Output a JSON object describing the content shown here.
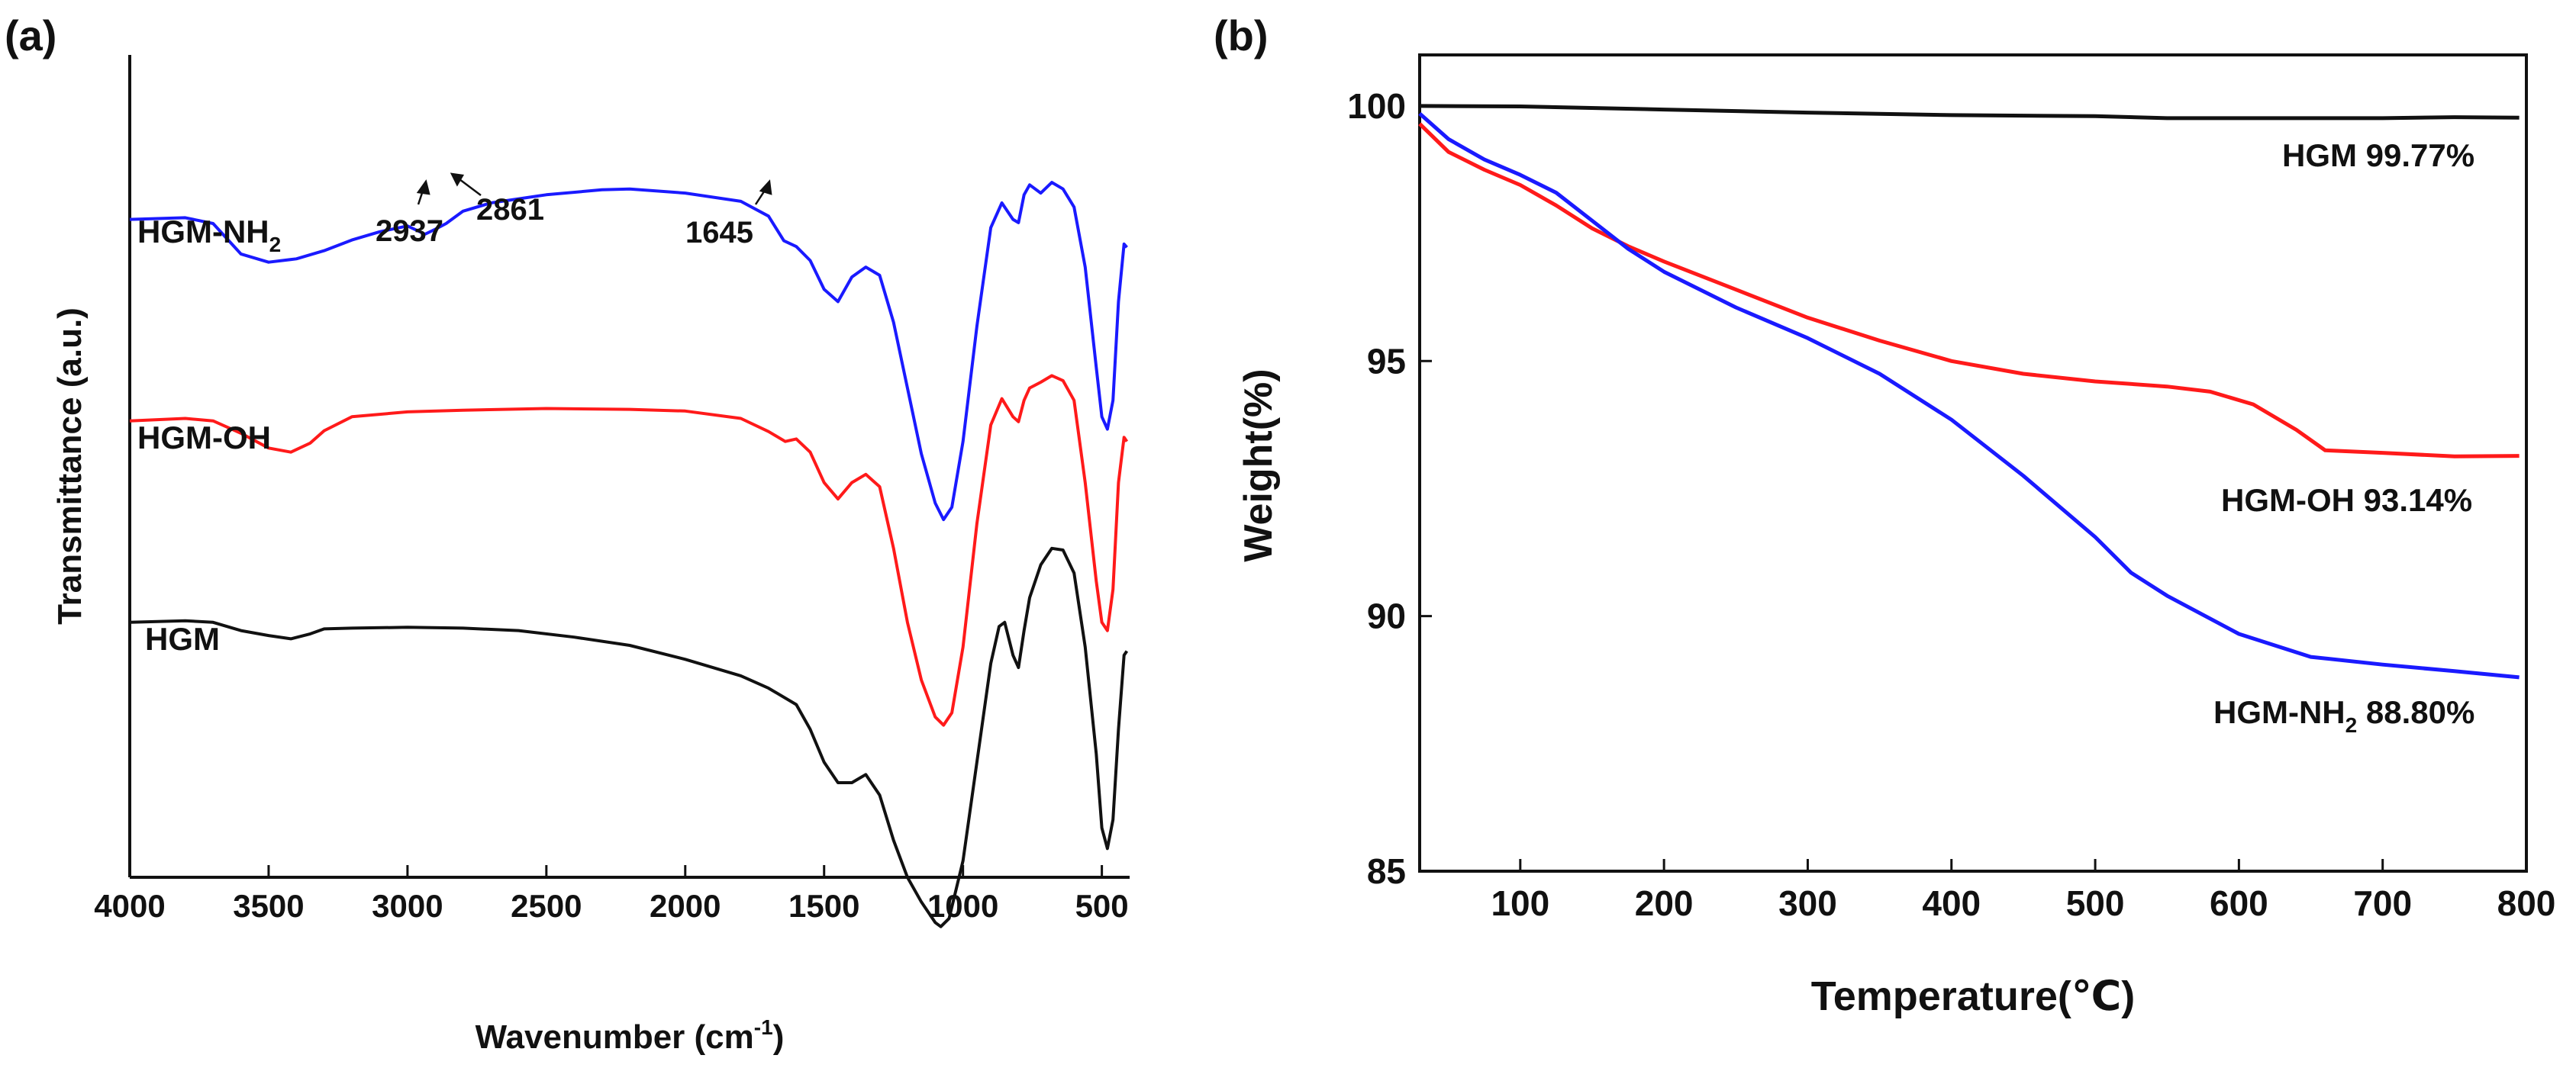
{
  "chart_data": [
    {
      "panel_label": "(a)",
      "type": "line",
      "title": "",
      "xlabel": "Wavenumber (cm",
      "xlabel_sup": "-1",
      "xlabel_suffix": ")",
      "ylabel": "Transmittance (a.u.)",
      "xlim": [
        4000,
        400
      ],
      "x_ticks": [
        "4000",
        "3500",
        "3000",
        "2500",
        "2000",
        "1500",
        "1000",
        "500"
      ],
      "y_ticks_shown": false,
      "curve_labels": {
        "nh2_main": "HGM-NH",
        "nh2_sub": "2",
        "oh": "HGM-OH",
        "hgm": "HGM"
      },
      "annotations": [
        "2937",
        "2861",
        "1645"
      ],
      "series": [
        {
          "name": "HGM-NH2",
          "color": "#1a1aff",
          "points": [
            [
              4000,
              0.2
            ],
            [
              3800,
              0.198
            ],
            [
              3700,
              0.205
            ],
            [
              3600,
              0.242
            ],
            [
              3500,
              0.252
            ],
            [
              3400,
              0.248
            ],
            [
              3300,
              0.238
            ],
            [
              3200,
              0.225
            ],
            [
              3100,
              0.215
            ],
            [
              3000,
              0.208
            ],
            [
              2937,
              0.218
            ],
            [
              2900,
              0.212
            ],
            [
              2861,
              0.205
            ],
            [
              2800,
              0.19
            ],
            [
              2700,
              0.18
            ],
            [
              2500,
              0.17
            ],
            [
              2300,
              0.164
            ],
            [
              2200,
              0.163
            ],
            [
              2000,
              0.168
            ],
            [
              1800,
              0.178
            ],
            [
              1700,
              0.196
            ],
            [
              1645,
              0.226
            ],
            [
              1600,
              0.233
            ],
            [
              1550,
              0.25
            ],
            [
              1500,
              0.285
            ],
            [
              1450,
              0.3
            ],
            [
              1400,
              0.27
            ],
            [
              1350,
              0.258
            ],
            [
              1300,
              0.268
            ],
            [
              1250,
              0.325
            ],
            [
              1200,
              0.405
            ],
            [
              1150,
              0.485
            ],
            [
              1100,
              0.545
            ],
            [
              1070,
              0.565
            ],
            [
              1040,
              0.55
            ],
            [
              1000,
              0.47
            ],
            [
              950,
              0.33
            ],
            [
              900,
              0.21
            ],
            [
              860,
              0.18
            ],
            [
              820,
              0.2
            ],
            [
              800,
              0.204
            ],
            [
              780,
              0.17
            ],
            [
              760,
              0.158
            ],
            [
              720,
              0.168
            ],
            [
              680,
              0.155
            ],
            [
              640,
              0.163
            ],
            [
              600,
              0.185
            ],
            [
              560,
              0.258
            ],
            [
              520,
              0.38
            ],
            [
              500,
              0.44
            ],
            [
              480,
              0.455
            ],
            [
              460,
              0.42
            ],
            [
              440,
              0.3
            ],
            [
              420,
              0.23
            ],
            [
              410,
              0.234
            ]
          ]
        },
        {
          "name": "HGM-OH",
          "color": "#ff1a1a",
          "points": [
            [
              4000,
              0.445
            ],
            [
              3800,
              0.442
            ],
            [
              3700,
              0.445
            ],
            [
              3600,
              0.46
            ],
            [
              3500,
              0.478
            ],
            [
              3420,
              0.483
            ],
            [
              3350,
              0.472
            ],
            [
              3300,
              0.457
            ],
            [
              3200,
              0.44
            ],
            [
              3000,
              0.434
            ],
            [
              2800,
              0.432
            ],
            [
              2500,
              0.43
            ],
            [
              2200,
              0.431
            ],
            [
              2000,
              0.433
            ],
            [
              1800,
              0.442
            ],
            [
              1700,
              0.458
            ],
            [
              1640,
              0.47
            ],
            [
              1600,
              0.467
            ],
            [
              1550,
              0.483
            ],
            [
              1500,
              0.52
            ],
            [
              1450,
              0.54
            ],
            [
              1400,
              0.52
            ],
            [
              1350,
              0.51
            ],
            [
              1300,
              0.525
            ],
            [
              1250,
              0.6
            ],
            [
              1200,
              0.69
            ],
            [
              1150,
              0.76
            ],
            [
              1100,
              0.805
            ],
            [
              1070,
              0.815
            ],
            [
              1040,
              0.8
            ],
            [
              1000,
              0.72
            ],
            [
              950,
              0.57
            ],
            [
              900,
              0.45
            ],
            [
              860,
              0.418
            ],
            [
              820,
              0.44
            ],
            [
              800,
              0.446
            ],
            [
              780,
              0.42
            ],
            [
              760,
              0.405
            ],
            [
              720,
              0.398
            ],
            [
              680,
              0.39
            ],
            [
              640,
              0.396
            ],
            [
              600,
              0.42
            ],
            [
              560,
              0.52
            ],
            [
              520,
              0.64
            ],
            [
              500,
              0.69
            ],
            [
              480,
              0.7
            ],
            [
              460,
              0.65
            ],
            [
              440,
              0.52
            ],
            [
              420,
              0.465
            ],
            [
              410,
              0.47
            ]
          ]
        },
        {
          "name": "HGM",
          "color": "#111111",
          "points": [
            [
              4000,
              0.69
            ],
            [
              3800,
              0.688
            ],
            [
              3700,
              0.69
            ],
            [
              3600,
              0.7
            ],
            [
              3500,
              0.706
            ],
            [
              3420,
              0.71
            ],
            [
              3350,
              0.704
            ],
            [
              3300,
              0.698
            ],
            [
              3200,
              0.697
            ],
            [
              3000,
              0.696
            ],
            [
              2800,
              0.697
            ],
            [
              2600,
              0.7
            ],
            [
              2400,
              0.708
            ],
            [
              2200,
              0.718
            ],
            [
              2000,
              0.735
            ],
            [
              1800,
              0.755
            ],
            [
              1700,
              0.77
            ],
            [
              1600,
              0.79
            ],
            [
              1550,
              0.82
            ],
            [
              1500,
              0.86
            ],
            [
              1450,
              0.885
            ],
            [
              1400,
              0.885
            ],
            [
              1350,
              0.875
            ],
            [
              1300,
              0.9
            ],
            [
              1250,
              0.955
            ],
            [
              1200,
              1.0
            ],
            [
              1150,
              1.03
            ],
            [
              1100,
              1.055
            ],
            [
              1080,
              1.06
            ],
            [
              1050,
              1.05
            ],
            [
              1000,
              0.98
            ],
            [
              950,
              0.86
            ],
            [
              900,
              0.74
            ],
            [
              870,
              0.695
            ],
            [
              850,
              0.69
            ],
            [
              820,
              0.73
            ],
            [
              800,
              0.745
            ],
            [
              780,
              0.7
            ],
            [
              760,
              0.66
            ],
            [
              720,
              0.62
            ],
            [
              680,
              0.6
            ],
            [
              640,
              0.602
            ],
            [
              600,
              0.63
            ],
            [
              560,
              0.72
            ],
            [
              520,
              0.85
            ],
            [
              500,
              0.94
            ],
            [
              480,
              0.965
            ],
            [
              460,
              0.93
            ],
            [
              440,
              0.82
            ],
            [
              420,
              0.73
            ],
            [
              410,
              0.725
            ]
          ]
        }
      ]
    },
    {
      "panel_label": "(b)",
      "type": "line",
      "title": "",
      "xlabel": "Temperature(℃)",
      "ylabel": "Weight(%)",
      "xlim": [
        30,
        800
      ],
      "ylim": [
        85,
        101
      ],
      "x_ticks": [
        100,
        200,
        300,
        400,
        500,
        600,
        700,
        800
      ],
      "y_ticks": [
        85,
        90,
        95,
        100
      ],
      "curve_labels": {
        "hgm": "HGM 99.77%",
        "oh": "HGM-OH 93.14%",
        "nh2_prefix": "HGM-NH",
        "nh2_sub": "2",
        "nh2_suffix": " 88.80%"
      },
      "series": [
        {
          "name": "HGM",
          "color": "#111111",
          "points": [
            [
              30,
              100.0
            ],
            [
              100,
              99.99
            ],
            [
              200,
              99.93
            ],
            [
              300,
              99.87
            ],
            [
              400,
              99.82
            ],
            [
              500,
              99.8
            ],
            [
              550,
              99.76
            ],
            [
              600,
              99.76
            ],
            [
              700,
              99.76
            ],
            [
              750,
              99.78
            ],
            [
              795,
              99.77
            ]
          ]
        },
        {
          "name": "HGM-OH",
          "color": "#ff1a1a",
          "points": [
            [
              30,
              99.65
            ],
            [
              50,
              99.1
            ],
            [
              75,
              98.75
            ],
            [
              100,
              98.45
            ],
            [
              125,
              98.05
            ],
            [
              150,
              97.6
            ],
            [
              175,
              97.25
            ],
            [
              200,
              96.95
            ],
            [
              250,
              96.4
            ],
            [
              300,
              95.85
            ],
            [
              350,
              95.4
            ],
            [
              400,
              95.0
            ],
            [
              450,
              94.75
            ],
            [
              500,
              94.6
            ],
            [
              550,
              94.5
            ],
            [
              580,
              94.4
            ],
            [
              610,
              94.15
            ],
            [
              640,
              93.65
            ],
            [
              660,
              93.25
            ],
            [
              700,
              93.2
            ],
            [
              750,
              93.13
            ],
            [
              795,
              93.14
            ]
          ]
        },
        {
          "name": "HGM-NH2",
          "color": "#1a1aff",
          "points": [
            [
              30,
              99.85
            ],
            [
              50,
              99.35
            ],
            [
              75,
              98.95
            ],
            [
              100,
              98.65
            ],
            [
              125,
              98.3
            ],
            [
              150,
              97.75
            ],
            [
              175,
              97.2
            ],
            [
              200,
              96.75
            ],
            [
              250,
              96.05
            ],
            [
              300,
              95.45
            ],
            [
              350,
              94.75
            ],
            [
              400,
              93.85
            ],
            [
              450,
              92.75
            ],
            [
              500,
              91.55
            ],
            [
              525,
              90.85
            ],
            [
              550,
              90.4
            ],
            [
              600,
              89.65
            ],
            [
              650,
              89.2
            ],
            [
              700,
              89.05
            ],
            [
              750,
              88.92
            ],
            [
              795,
              88.8
            ]
          ]
        }
      ]
    }
  ]
}
